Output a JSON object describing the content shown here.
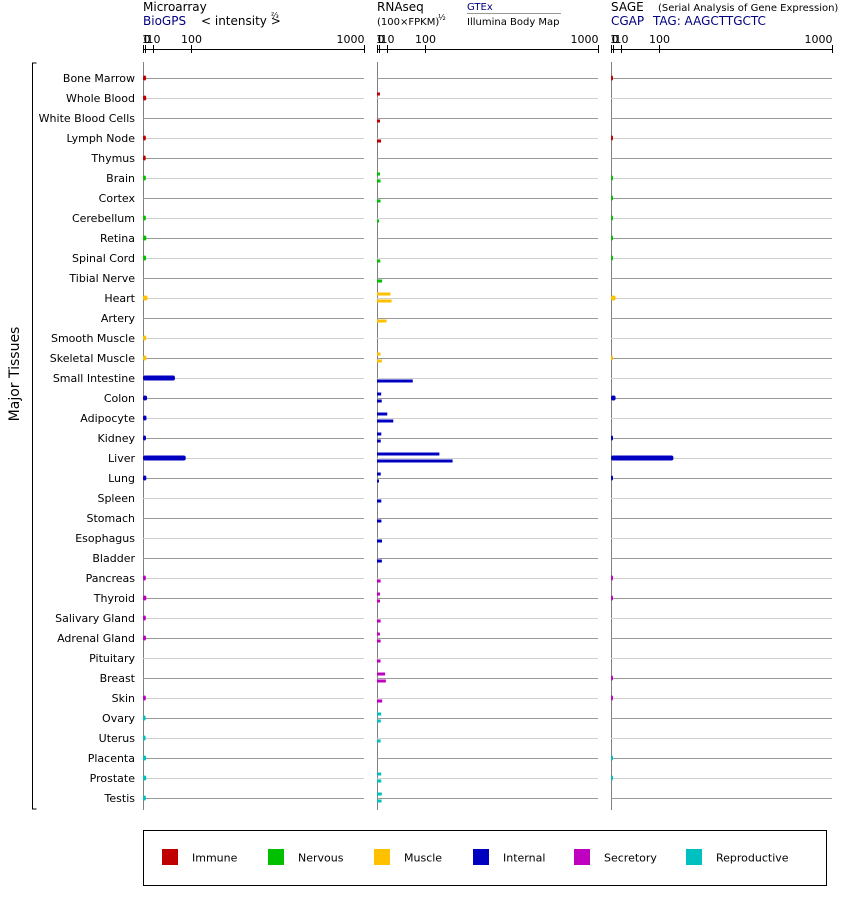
{
  "chart_data": {
    "type": "bar",
    "tissue_axis_label": "Major Tissues",
    "tissues": [
      "Bone Marrow",
      "Whole Blood",
      "White Blood Cells",
      "Lymph Node",
      "Thymus",
      "Brain",
      "Cortex",
      "Cerebellum",
      "Retina",
      "Spinal Cord",
      "Tibial Nerve",
      "Heart",
      "Artery",
      "Smooth Muscle",
      "Skeletal Muscle",
      "Small Intestine",
      "Colon",
      "Adipocyte",
      "Kidney",
      "Liver",
      "Lung",
      "Spleen",
      "Stomach",
      "Esophagus",
      "Bladder",
      "Pancreas",
      "Thyroid",
      "Salivary Gland",
      "Adrenal Gland",
      "Pituitary",
      "Breast",
      "Skin",
      "Ovary",
      "Uterus",
      "Placenta",
      "Prostate",
      "Testis"
    ],
    "tissue_groups": [
      "immune",
      "immune",
      "immune",
      "immune",
      "immune",
      "nervous",
      "nervous",
      "nervous",
      "nervous",
      "nervous",
      "nervous",
      "muscle",
      "muscle",
      "muscle",
      "muscle",
      "internal",
      "internal",
      "internal",
      "internal",
      "internal",
      "internal",
      "internal",
      "internal",
      "internal",
      "internal",
      "secretory",
      "secretory",
      "secretory",
      "secretory",
      "secretory",
      "secretory",
      "secretory",
      "reproductive",
      "reproductive",
      "reproductive",
      "reproductive",
      "reproductive"
    ],
    "colors": {
      "immune": "#c00000",
      "nervous": "#00c000",
      "muscle": "#ffc000",
      "internal": "#0000c0",
      "secretory": "#c000c0",
      "reproductive": "#00c0c0"
    },
    "ticks": [
      "0",
      "1",
      "10",
      "100",
      "1000"
    ],
    "tick_values": [
      0,
      1,
      10,
      100,
      1000
    ],
    "xlim": [
      0,
      1000
    ],
    "panels": [
      {
        "title": "Microarray",
        "source": "BioGPS",
        "scale_label": "< intensity >",
        "scale_exp": "⅔",
        "values": [
          [
            1.7
          ],
          [
            1.8
          ],
          [
            null
          ],
          [
            1.5
          ],
          [
            1.4
          ],
          [
            1.5
          ],
          [
            null
          ],
          [
            1.5
          ],
          [
            1.9
          ],
          [
            1.7
          ],
          [
            null
          ],
          [
            3.0
          ],
          [
            null
          ],
          [
            1.8
          ],
          [
            1.9
          ],
          [
            55
          ],
          [
            2.5
          ],
          [
            2.0
          ],
          [
            1.6
          ],
          [
            85
          ],
          [
            1.9
          ],
          [
            null
          ],
          [
            null
          ],
          [
            null
          ],
          [
            null
          ],
          [
            1.5
          ],
          [
            1.9
          ],
          [
            1.5
          ],
          [
            1.6
          ],
          [
            null
          ],
          [
            null
          ],
          [
            1.5
          ],
          [
            1.3
          ],
          [
            1.3
          ],
          [
            1.7
          ],
          [
            1.8
          ],
          [
            1.5
          ]
        ]
      },
      {
        "title": "RNAseq",
        "scale_label": "(100×FPKM)",
        "scale_exp": "½",
        "legend_gtex": "GTEx",
        "legend_illumina": "Illumina Body Map",
        "values": [
          [
            null,
            null
          ],
          [
            1.6,
            null
          ],
          [
            null,
            1.6
          ],
          [
            null,
            2.5
          ],
          [
            null,
            null
          ],
          [
            1.6,
            2.0
          ],
          [
            null,
            2.0
          ],
          [
            null,
            0.9
          ],
          [
            null,
            null
          ],
          [
            null,
            1.8
          ],
          [
            null,
            3.5
          ],
          [
            15,
            17
          ],
          [
            null,
            9
          ],
          [
            null,
            null
          ],
          [
            2.0,
            3.3
          ],
          [
            null,
            65
          ],
          [
            2.6,
            3.1
          ],
          [
            10,
            20
          ],
          [
            2.7,
            2.2
          ],
          [
            150,
            200
          ],
          [
            2.2,
            0.8
          ],
          [
            null,
            2.7
          ],
          [
            null,
            2.8
          ],
          [
            null,
            3.4
          ],
          [
            null,
            3.3
          ],
          [
            null,
            2.1
          ],
          [
            1.6,
            1.6
          ],
          [
            null,
            2.1
          ],
          [
            1.5,
            2.1
          ],
          [
            null,
            2.0
          ],
          [
            7,
            8
          ],
          [
            null,
            3.6
          ],
          [
            2.6,
            2.2
          ],
          [
            null,
            2.1
          ],
          [
            null,
            null
          ],
          [
            2.6,
            2.7
          ],
          [
            3.2,
            2.9
          ]
        ]
      },
      {
        "title": "SAGE",
        "subtitle": "(Serial Analysis of Gene Expression)",
        "source": "CGAP",
        "tag_label": "TAG: AAGCTTGCTC",
        "values": [
          [
            0.05
          ],
          [
            null
          ],
          [
            null
          ],
          [
            0.05
          ],
          [
            null
          ],
          [
            0.05
          ],
          [
            0.05
          ],
          [
            0.05
          ],
          [
            0.05
          ],
          [
            0.05
          ],
          [
            null
          ],
          [
            3
          ],
          [
            null
          ],
          [
            null
          ],
          [
            0.05
          ],
          [
            null
          ],
          [
            3
          ],
          [
            null
          ],
          [
            0.05
          ],
          [
            150
          ],
          [
            0.05
          ],
          [
            null
          ],
          [
            null
          ],
          [
            null
          ],
          [
            null
          ],
          [
            0.05
          ],
          [
            0.05
          ],
          [
            null
          ],
          [
            null
          ],
          [
            null
          ],
          [
            0.05
          ],
          [
            0.05
          ],
          [
            null
          ],
          [
            null
          ],
          [
            0.05
          ],
          [
            0.05
          ],
          [
            null
          ]
        ]
      }
    ],
    "legend": [
      {
        "key": "immune",
        "label": "Immune"
      },
      {
        "key": "nervous",
        "label": "Nervous"
      },
      {
        "key": "muscle",
        "label": "Muscle"
      },
      {
        "key": "internal",
        "label": "Internal"
      },
      {
        "key": "secretory",
        "label": "Secretory"
      },
      {
        "key": "reproductive",
        "label": "Reproductive"
      }
    ]
  }
}
